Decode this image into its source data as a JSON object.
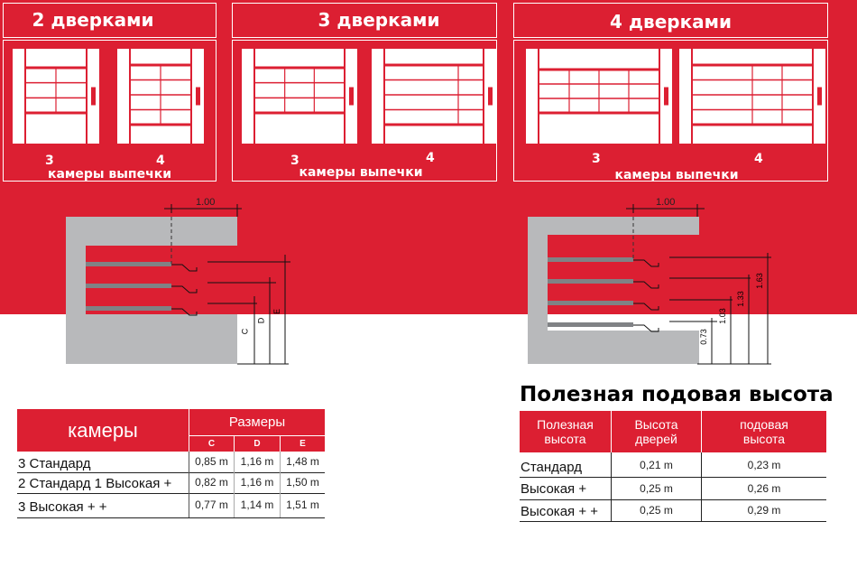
{
  "colors": {
    "brand_red": "#dc1f32",
    "oven_gray": "#b8b9bb",
    "tray_gray": "#808285"
  },
  "panels": [
    {
      "title": "2 дверками",
      "left_count": "3",
      "right_count": "4",
      "caption": "камеры выпечки"
    },
    {
      "title": "3 дверками",
      "left_count": "3",
      "right_count": "4",
      "caption": "камеры выпечки"
    },
    {
      "title": "4 дверками",
      "left_count": "3",
      "right_count": "4",
      "caption": "камеры выпечки"
    }
  ],
  "diagram_left": {
    "width_label": "1.00",
    "dim_labels": [
      "C",
      "D",
      "E"
    ]
  },
  "diagram_right": {
    "width_label": "1.00",
    "dim_labels": [
      "0.73",
      "1.03",
      "1.33",
      "1.63"
    ]
  },
  "dimensions_table": {
    "header_main": "камеры",
    "header_group": "Размеры",
    "columns": [
      "C",
      "D",
      "E"
    ],
    "rows": [
      {
        "label": "3 Стандард",
        "values": [
          "0,85 m",
          "1,16 m",
          "1,48 m"
        ]
      },
      {
        "label": "2 Стандард 1 Высокая +",
        "values": [
          "0,82 m",
          "1,16 m",
          "1,50 m"
        ]
      },
      {
        "label": "3 Высокая + +",
        "values": [
          "0,77 m",
          "1,14 m",
          "1,51 m"
        ]
      }
    ]
  },
  "height_table": {
    "title": "Полезная подовая высота",
    "columns": [
      "Полезная высота",
      "Высота дверей",
      "подовая высота"
    ],
    "rows": [
      {
        "label": "Стандард",
        "values": [
          "0,21 m",
          "0,23 m"
        ]
      },
      {
        "label": "Высокая +",
        "values": [
          "0,25 m",
          "0,26 m"
        ]
      },
      {
        "label": "Высокая + +",
        "values": [
          "0,25 m",
          "0,29 m"
        ]
      }
    ]
  }
}
